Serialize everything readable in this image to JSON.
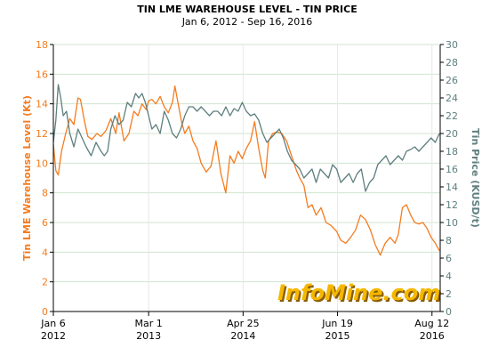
{
  "chart_data": {
    "type": "line",
    "title": "TIN LME WAREHOUSE LEVEL - TIN PRICE",
    "subtitle": "Jan 6, 2012 - Sep 16, 2016",
    "watermark": "InfoMine.com",
    "ylabel_left": "Tin LME Warehouse Level (Kt)",
    "ylabel_right": "Tin Price (KUSD/t)",
    "ylim_left": [
      0,
      18
    ],
    "ylim_right": [
      0,
      30
    ],
    "yticks_left": [
      "0",
      "2",
      "4",
      "6",
      "8",
      "10",
      "12",
      "14",
      "16",
      "18"
    ],
    "yticks_right": [
      "0",
      "2",
      "4",
      "6",
      "8",
      "10",
      "12",
      "14",
      "16",
      "18",
      "20",
      "22",
      "24",
      "26",
      "28",
      "30"
    ],
    "xlim": [
      2012.0,
      2016.71
    ],
    "xticks": [
      {
        "x": 2012.0,
        "line1": "Jan 6",
        "line2": "2012"
      },
      {
        "x": 2013.16,
        "line1": "Mar 1",
        "line2": "2013"
      },
      {
        "x": 2014.31,
        "line1": "Apr 25",
        "line2": "2014"
      },
      {
        "x": 2015.46,
        "line1": "Jun 19",
        "line2": "2015"
      },
      {
        "x": 2016.61,
        "line1": "Aug 12",
        "line2": "2016"
      }
    ],
    "grid": true,
    "colors": {
      "warehouse": "#f47c20",
      "price": "#5f7f7f",
      "grid": "#cfe5cf",
      "vline": "#e8e8e8"
    },
    "series": [
      {
        "name": "Tin LME Warehouse Level (Kt)",
        "axis": "left",
        "color": "#f47c20",
        "x": [
          2012.0,
          2012.03,
          2012.06,
          2012.1,
          2012.15,
          2012.2,
          2012.25,
          2012.3,
          2012.33,
          2012.38,
          2012.42,
          2012.47,
          2012.53,
          2012.58,
          2012.64,
          2012.7,
          2012.76,
          2012.8,
          2012.86,
          2012.92,
          2012.98,
          2013.03,
          2013.08,
          2013.13,
          2013.16,
          2013.2,
          2013.25,
          2013.3,
          2013.35,
          2013.4,
          2013.45,
          2013.48,
          2013.52,
          2013.56,
          2013.6,
          2013.65,
          2013.7,
          2013.75,
          2013.8,
          2013.86,
          2013.92,
          2013.98,
          2014.04,
          2014.1,
          2014.15,
          2014.2,
          2014.25,
          2014.3,
          2014.35,
          2014.4,
          2014.45,
          2014.5,
          2014.55,
          2014.58,
          2014.62,
          2014.67,
          2014.72,
          2014.78,
          2014.84,
          2014.9,
          2014.96,
          2015.0,
          2015.05,
          2015.1,
          2015.15,
          2015.2,
          2015.26,
          2015.32,
          2015.38,
          2015.45,
          2015.5,
          2015.56,
          2015.62,
          2015.68,
          2015.74,
          2015.8,
          2015.86,
          2015.92,
          2015.98,
          2016.04,
          2016.1,
          2016.16,
          2016.2,
          2016.25,
          2016.3,
          2016.35,
          2016.4,
          2016.45,
          2016.5,
          2016.55,
          2016.6,
          2016.65,
          2016.7
        ],
        "values": [
          11.3,
          9.5,
          9.2,
          10.8,
          12.0,
          13.0,
          12.6,
          14.4,
          14.3,
          12.8,
          11.8,
          11.6,
          12.0,
          11.8,
          12.2,
          13.0,
          12.0,
          13.4,
          11.5,
          12.0,
          13.5,
          13.2,
          14.0,
          13.6,
          14.2,
          14.3,
          14.0,
          14.5,
          13.8,
          13.4,
          14.1,
          15.2,
          14.0,
          12.8,
          12.0,
          12.5,
          11.5,
          11.0,
          10.0,
          9.4,
          9.8,
          11.5,
          9.3,
          8.0,
          10.5,
          10.0,
          10.8,
          10.3,
          11.0,
          11.5,
          12.8,
          11.0,
          9.5,
          9.0,
          11.5,
          12.0,
          12.1,
          12.0,
          11.5,
          10.5,
          9.5,
          9.0,
          8.5,
          7.0,
          7.2,
          6.5,
          7.0,
          6.0,
          5.8,
          5.4,
          4.8,
          4.6,
          5.0,
          5.5,
          6.5,
          6.2,
          5.5,
          4.5,
          3.8,
          4.6,
          5.0,
          4.6,
          5.2,
          7.0,
          7.2,
          6.5,
          6.0,
          5.9,
          6.0,
          5.6,
          5.0,
          4.6,
          4.1
        ]
      },
      {
        "name": "Tin Price (KUSD/t)",
        "axis": "right",
        "color": "#5f7f7f",
        "x": [
          2012.0,
          2012.03,
          2012.06,
          2012.09,
          2012.12,
          2012.16,
          2012.2,
          2012.25,
          2012.3,
          2012.35,
          2012.4,
          2012.46,
          2012.52,
          2012.58,
          2012.62,
          2012.66,
          2012.7,
          2012.75,
          2012.8,
          2012.85,
          2012.9,
          2012.95,
          2013.0,
          2013.04,
          2013.08,
          2013.12,
          2013.16,
          2013.2,
          2013.25,
          2013.3,
          2013.35,
          2013.4,
          2013.45,
          2013.5,
          2013.55,
          2013.6,
          2013.65,
          2013.7,
          2013.75,
          2013.8,
          2013.85,
          2013.9,
          2013.95,
          2014.0,
          2014.05,
          2014.1,
          2014.15,
          2014.2,
          2014.25,
          2014.3,
          2014.35,
          2014.4,
          2014.45,
          2014.5,
          2014.55,
          2014.6,
          2014.65,
          2014.7,
          2014.75,
          2014.8,
          2014.85,
          2014.9,
          2014.95,
          2015.0,
          2015.05,
          2015.1,
          2015.15,
          2015.2,
          2015.25,
          2015.3,
          2015.35,
          2015.4,
          2015.45,
          2015.5,
          2015.55,
          2015.6,
          2015.65,
          2015.7,
          2015.75,
          2015.8,
          2015.85,
          2015.9,
          2015.95,
          2016.0,
          2016.05,
          2016.1,
          2016.15,
          2016.2,
          2016.25,
          2016.3,
          2016.35,
          2016.4,
          2016.45,
          2016.5,
          2016.55,
          2016.6,
          2016.65,
          2016.7
        ],
        "values": [
          19.0,
          21.5,
          25.5,
          24.0,
          22.0,
          22.5,
          20.0,
          18.5,
          20.5,
          19.5,
          18.5,
          17.5,
          19.0,
          18.0,
          17.5,
          18.0,
          20.5,
          22.0,
          21.0,
          21.5,
          23.5,
          23.0,
          24.5,
          24.0,
          24.5,
          23.5,
          22.0,
          20.5,
          21.0,
          20.0,
          22.5,
          21.5,
          20.0,
          19.5,
          20.5,
          22.0,
          23.0,
          23.0,
          22.5,
          23.0,
          22.5,
          22.0,
          22.5,
          22.5,
          22.0,
          23.0,
          22.0,
          22.8,
          22.5,
          23.5,
          22.5,
          22.0,
          22.2,
          21.5,
          20.0,
          19.0,
          19.5,
          20.0,
          20.5,
          19.5,
          18.0,
          17.0,
          16.5,
          16.0,
          15.0,
          15.5,
          16.0,
          14.5,
          16.0,
          15.5,
          15.0,
          16.5,
          16.0,
          14.5,
          15.0,
          15.5,
          14.5,
          15.5,
          16.0,
          13.5,
          14.5,
          15.0,
          16.5,
          17.0,
          17.5,
          16.5,
          17.0,
          17.5,
          17.0,
          18.0,
          18.2,
          18.5,
          18.0,
          18.5,
          19.0,
          19.5,
          19.0,
          20.0
        ]
      }
    ]
  }
}
